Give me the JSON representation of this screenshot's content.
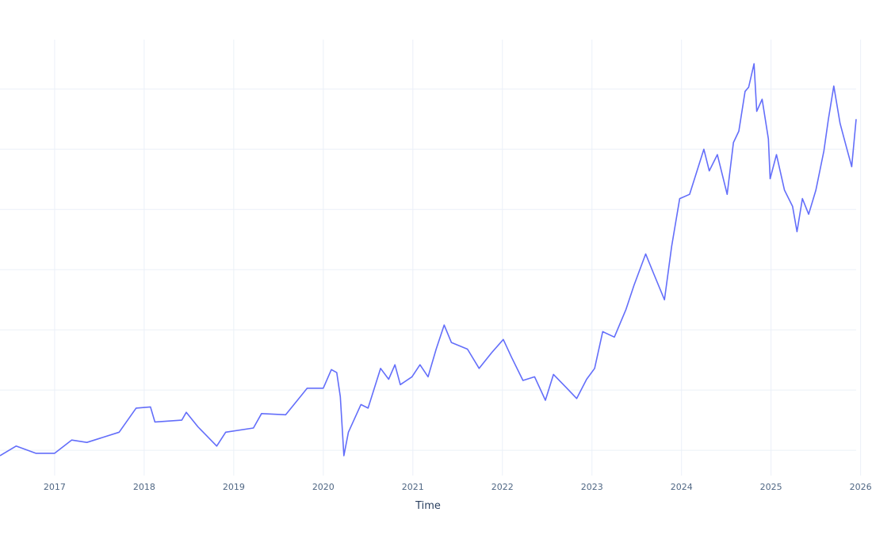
{
  "chart_data": {
    "type": "line",
    "title": "",
    "xlabel": "Time",
    "ylabel": "",
    "x_tick_labels": [
      "2017",
      "2018",
      "2019",
      "2020",
      "2021",
      "2022",
      "2023",
      "2024",
      "2025",
      "2026"
    ],
    "xlim": [
      2016.39,
      2025.95
    ],
    "ylim": [
      -0.42,
      6.82
    ],
    "y_gridlines": [
      0,
      1,
      2,
      3,
      4,
      5,
      6
    ],
    "grid": true,
    "line_color": "#636efa",
    "series": [
      {
        "x": [
          2016.39,
          2016.57,
          2016.79,
          2017.0,
          2017.19,
          2017.36,
          2017.72,
          2017.91,
          2018.07,
          2018.12,
          2018.42,
          2018.47,
          2018.6,
          2018.81,
          2018.91,
          2019.22,
          2019.31,
          2019.58,
          2019.82,
          2020.0,
          2020.09,
          2020.15,
          2020.19,
          2020.23,
          2020.28,
          2020.42,
          2020.5,
          2020.64,
          2020.73,
          2020.8,
          2020.86,
          2020.99,
          2021.08,
          2021.17,
          2021.26,
          2021.35,
          2021.43,
          2021.61,
          2021.74,
          2021.88,
          2022.01,
          2022.1,
          2022.23,
          2022.36,
          2022.48,
          2022.57,
          2022.72,
          2022.83,
          2022.94,
          2023.03,
          2023.12,
          2023.25,
          2023.38,
          2023.47,
          2023.6,
          2023.69,
          2023.81,
          2023.89,
          2023.98,
          2024.09,
          2024.16,
          2024.25,
          2024.31,
          2024.4,
          2024.51,
          2024.58,
          2024.64,
          2024.71,
          2024.75,
          2024.81,
          2024.84,
          2024.9,
          2024.97,
          2024.99,
          2025.06,
          2025.15,
          2025.24,
          2025.29,
          2025.35,
          2025.42,
          2025.5,
          2025.59,
          2025.64,
          2025.7,
          2025.77,
          2025.84,
          2025.9,
          2025.95
        ],
        "y": [
          -0.09,
          0.07,
          -0.05,
          -0.05,
          0.17,
          0.13,
          0.3,
          0.7,
          0.72,
          0.47,
          0.5,
          0.63,
          0.39,
          0.07,
          0.3,
          0.37,
          0.61,
          0.59,
          1.03,
          1.03,
          1.34,
          1.29,
          0.89,
          -0.09,
          0.3,
          0.76,
          0.7,
          1.36,
          1.18,
          1.42,
          1.09,
          1.22,
          1.42,
          1.22,
          1.68,
          2.08,
          1.79,
          1.68,
          1.36,
          1.62,
          1.84,
          1.55,
          1.16,
          1.22,
          0.83,
          1.26,
          1.03,
          0.86,
          1.18,
          1.36,
          1.97,
          1.88,
          2.34,
          2.74,
          3.26,
          2.93,
          2.5,
          3.39,
          4.18,
          4.25,
          4.58,
          5.0,
          4.64,
          4.91,
          4.25,
          5.11,
          5.3,
          5.96,
          6.03,
          6.42,
          5.63,
          5.83,
          5.17,
          4.51,
          4.91,
          4.32,
          4.05,
          3.63,
          4.18,
          3.92,
          4.32,
          4.97,
          5.5,
          6.05,
          5.43,
          5.04,
          4.71,
          5.5
        ]
      }
    ]
  }
}
